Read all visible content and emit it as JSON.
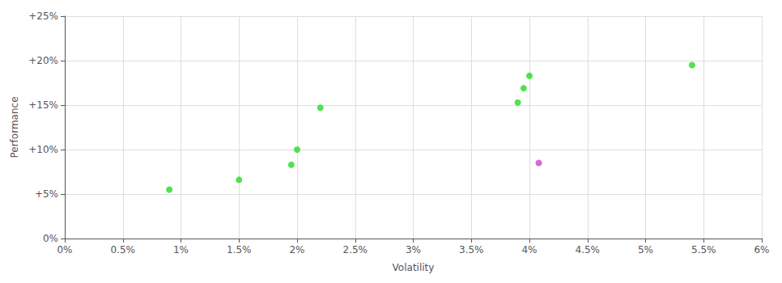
{
  "chart_data": {
    "type": "scatter",
    "xlabel": "Volatility",
    "ylabel": "Performance",
    "xlim": [
      0.0,
      0.06
    ],
    "ylim": [
      0.0,
      0.25
    ],
    "xticks": [
      {
        "value": 0.0,
        "label": "0%"
      },
      {
        "value": 0.005,
        "label": "0.5%"
      },
      {
        "value": 0.01,
        "label": "1%"
      },
      {
        "value": 0.015,
        "label": "1.5%"
      },
      {
        "value": 0.02,
        "label": "2%"
      },
      {
        "value": 0.025,
        "label": "2.5%"
      },
      {
        "value": 0.03,
        "label": "3%"
      },
      {
        "value": 0.035,
        "label": "3.5%"
      },
      {
        "value": 0.04,
        "label": "4%"
      },
      {
        "value": 0.045,
        "label": "4.5%"
      },
      {
        "value": 0.05,
        "label": "5%"
      },
      {
        "value": 0.055,
        "label": "5.5%"
      },
      {
        "value": 0.06,
        "label": "6%"
      }
    ],
    "yticks": [
      {
        "value": 0.0,
        "label": "0%"
      },
      {
        "value": 0.05,
        "label": "+5%"
      },
      {
        "value": 0.1,
        "label": "+10%"
      },
      {
        "value": 0.15,
        "label": "+15%"
      },
      {
        "value": 0.2,
        "label": "+20%"
      },
      {
        "value": 0.25,
        "label": "+25%"
      }
    ],
    "grid": true,
    "series": [
      {
        "color": "#22dd22",
        "values": [
          [
            0.009,
            0.055
          ],
          [
            0.015,
            0.066
          ],
          [
            0.0195,
            0.083
          ],
          [
            0.02,
            0.1
          ],
          [
            0.022,
            0.147
          ],
          [
            0.039,
            0.153
          ],
          [
            0.0395,
            0.169
          ],
          [
            0.04,
            0.183
          ],
          [
            0.054,
            0.195
          ]
        ]
      },
      {
        "color": "#cc44cc",
        "values": [
          [
            0.0408,
            0.085
          ]
        ]
      }
    ]
  }
}
